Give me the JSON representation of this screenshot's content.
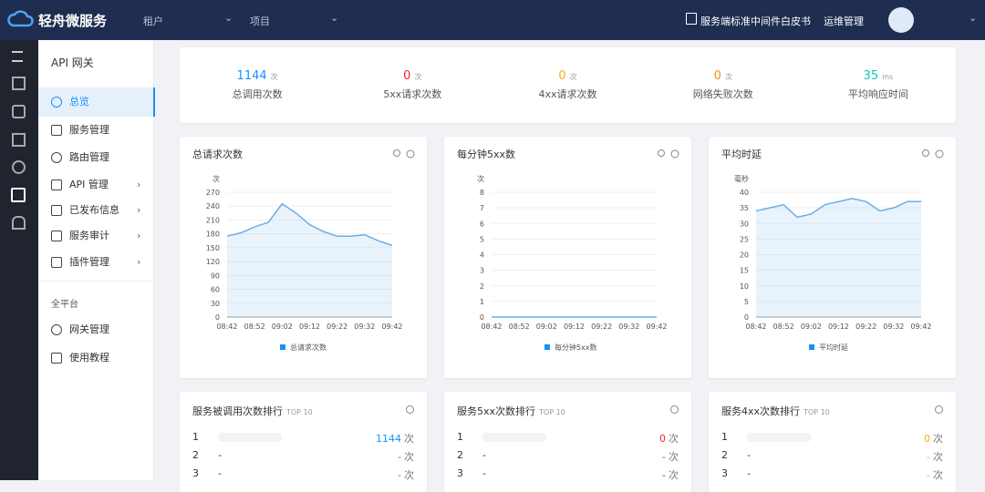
{
  "header": {
    "brand": "轻舟微服务",
    "tenant": "租户",
    "project": "项目",
    "whitepaper": "服务端标准中间件白皮书",
    "ops": "运维管理"
  },
  "sidebar": {
    "title": "API 网关",
    "items": [
      "总览",
      "服务管理",
      "路由管理",
      "API 管理",
      "已发布信息",
      "服务审计",
      "插件管理"
    ],
    "section": "全平台",
    "section_items": [
      "网关管理",
      "使用教程"
    ]
  },
  "stats": [
    {
      "value": 1144,
      "unit": "次",
      "label": "总调用次数",
      "color": "#1890ff"
    },
    {
      "value": 0,
      "unit": "次",
      "label": "5xx请求次数",
      "color": "#f5222d"
    },
    {
      "value": 0,
      "unit": "次",
      "label": "4xx请求次数",
      "color": "#faad14"
    },
    {
      "value": 0,
      "unit": "次",
      "label": "网络失败次数",
      "color": "#fa8c16"
    },
    {
      "value": 35,
      "unit": "ms",
      "label": "平均响应时间",
      "color": "#13c2c2"
    }
  ],
  "chart_data": [
    {
      "type": "line",
      "title": "总请求次数",
      "y_label": "次",
      "categories": [
        "08:42",
        null,
        "08:52",
        null,
        "09:02",
        null,
        "09:12",
        null,
        "09:22",
        null,
        "09:32",
        null,
        "09:42"
      ],
      "series": [
        {
          "name": "总请求次数",
          "color": "#6aaee8",
          "values": [
            175,
            182,
            195,
            205,
            245,
            225,
            200,
            185,
            175,
            175,
            178,
            165,
            155
          ]
        }
      ],
      "ylim": [
        0,
        270
      ],
      "yticks": [
        0,
        30,
        60,
        90,
        120,
        150,
        180,
        210,
        240,
        270
      ],
      "grid": true
    },
    {
      "type": "line",
      "title": "每分钟5xx数",
      "y_label": "次",
      "categories": [
        "08:42",
        null,
        "08:52",
        null,
        "09:02",
        null,
        "09:12",
        null,
        "09:22",
        null,
        "09:32",
        null,
        "09:42"
      ],
      "series": [
        {
          "name": "每分钟5xx数",
          "color": "#6aaee8",
          "values": [
            0,
            0,
            0,
            0,
            0,
            0,
            0,
            0,
            0,
            0,
            0,
            0,
            0
          ]
        }
      ],
      "ylim": [
        0,
        8
      ],
      "yticks": [
        0,
        1,
        2,
        3,
        4,
        5,
        6,
        7,
        8
      ],
      "grid": true
    },
    {
      "type": "line",
      "title": "平均时延",
      "y_label": "毫秒",
      "categories": [
        "08:42",
        null,
        "08:52",
        null,
        "09:02",
        null,
        "09:12",
        null,
        "09:22",
        null,
        "09:32",
        null,
        "09:42"
      ],
      "series": [
        {
          "name": "平均时延",
          "color": "#6aaee8",
          "values": [
            34,
            35,
            36,
            32,
            33,
            36,
            37,
            38,
            37,
            34,
            35,
            37,
            37
          ]
        }
      ],
      "ylim": [
        0,
        40
      ],
      "yticks": [
        0,
        5,
        10,
        15,
        20,
        25,
        30,
        35,
        40
      ],
      "grid": true
    }
  ],
  "rankings": [
    {
      "title": "服务被调用次数排行",
      "badge": "TOP 10",
      "color": "#1890ff",
      "rows": [
        {
          "rank": "1",
          "name": "",
          "value": "1144",
          "unit": "次"
        },
        {
          "rank": "2",
          "name": "-",
          "value": "-",
          "unit": "次"
        },
        {
          "rank": "3",
          "name": "-",
          "value": "-",
          "unit": "次"
        }
      ]
    },
    {
      "title": "服务5xx次数排行",
      "badge": "TOP 10",
      "color": "#f5222d",
      "rows": [
        {
          "rank": "1",
          "name": "",
          "value": "0",
          "unit": "次"
        },
        {
          "rank": "2",
          "name": "-",
          "value": "-",
          "unit": "次"
        },
        {
          "rank": "3",
          "name": "-",
          "value": "-",
          "unit": "次"
        }
      ]
    },
    {
      "title": "服务4xx次数排行",
      "badge": "TOP 10",
      "color": "#faad14",
      "rows": [
        {
          "rank": "1",
          "name": "",
          "value": "0",
          "unit": "次"
        },
        {
          "rank": "2",
          "name": "-",
          "value": "-",
          "unit": "次"
        },
        {
          "rank": "3",
          "name": "-",
          "value": "-",
          "unit": "次"
        }
      ]
    }
  ]
}
